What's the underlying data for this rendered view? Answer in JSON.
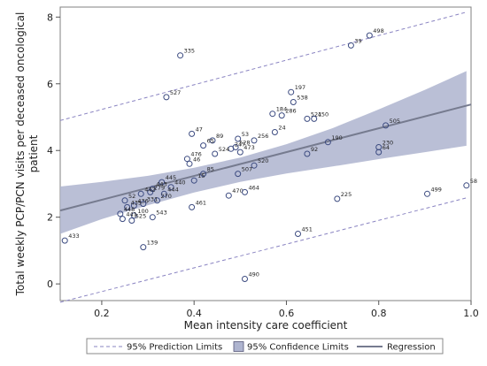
{
  "chart_data": {
    "type": "scatter",
    "title": "",
    "xlabel": "Mean intensity care coefficient",
    "ylabel_lines": [
      "Total weekly PCP/PCN visits per deceased oncological",
      "patient"
    ],
    "xlim": [
      0.11,
      1.0
    ],
    "ylim": [
      -0.5,
      8.3
    ],
    "x_ticks": [
      0.2,
      0.4,
      0.6,
      0.8,
      1.0
    ],
    "x_tick_labels": [
      "0.2",
      "0.4",
      "0.6",
      "0.8",
      "1.0"
    ],
    "y_ticks": [
      0,
      2,
      4,
      6,
      8
    ],
    "y_tick_labels": [
      "0",
      "2",
      "4",
      "6",
      "8"
    ],
    "grid": false,
    "legend_placement": "bottom",
    "legend": {
      "prediction": "95% Prediction Limits",
      "confidence": "95% Confidence Limits",
      "regression": "Regression"
    },
    "colors": {
      "points": "#3c4b80",
      "confidence_band": "#aeb4cf",
      "regression_line": "#767b8f",
      "prediction_limits": "#8a84c2"
    },
    "regression_line": {
      "x": [
        0.11,
        1.0
      ],
      "y": [
        2.2,
        5.38
      ]
    },
    "confidence_upper": {
      "x": [
        0.11,
        0.2,
        0.3,
        0.4,
        0.5,
        0.6,
        0.7,
        0.8,
        0.9,
        0.99
      ],
      "y": [
        2.92,
        3.06,
        3.24,
        3.48,
        3.79,
        4.19,
        4.67,
        5.23,
        5.82,
        6.38
      ]
    },
    "confidence_lower": {
      "x": [
        0.11,
        0.2,
        0.3,
        0.4,
        0.5,
        0.6,
        0.7,
        0.8,
        0.9,
        0.99
      ],
      "y": [
        1.5,
        1.94,
        2.36,
        2.74,
        3.06,
        3.31,
        3.52,
        3.74,
        3.95,
        4.14
      ]
    },
    "prediction_upper": {
      "x": [
        0.11,
        0.99
      ],
      "y": [
        4.9,
        8.15
      ]
    },
    "prediction_lower": {
      "x": [
        0.11,
        0.99
      ],
      "y": [
        -0.55,
        2.58
      ]
    },
    "points": [
      {
        "label": "498",
        "x": 0.78,
        "y": 7.45
      },
      {
        "label": "39",
        "x": 0.74,
        "y": 7.15
      },
      {
        "label": "335",
        "x": 0.37,
        "y": 6.85
      },
      {
        "label": "527",
        "x": 0.34,
        "y": 5.6
      },
      {
        "label": "197",
        "x": 0.61,
        "y": 5.75
      },
      {
        "label": "538",
        "x": 0.615,
        "y": 5.45
      },
      {
        "label": "184",
        "x": 0.57,
        "y": 5.1
      },
      {
        "label": "286",
        "x": 0.59,
        "y": 5.05
      },
      {
        "label": "521",
        "x": 0.645,
        "y": 4.95
      },
      {
        "label": "450",
        "x": 0.66,
        "y": 4.95
      },
      {
        "label": "505",
        "x": 0.815,
        "y": 4.75
      },
      {
        "label": "47",
        "x": 0.395,
        "y": 4.5
      },
      {
        "label": "89",
        "x": 0.44,
        "y": 4.3
      },
      {
        "label": "53",
        "x": 0.495,
        "y": 4.35
      },
      {
        "label": "24",
        "x": 0.575,
        "y": 4.55
      },
      {
        "label": "256",
        "x": 0.53,
        "y": 4.3
      },
      {
        "label": "190",
        "x": 0.69,
        "y": 4.25
      },
      {
        "label": "230",
        "x": 0.8,
        "y": 4.1
      },
      {
        "label": "65",
        "x": 0.42,
        "y": 4.15
      },
      {
        "label": "528",
        "x": 0.49,
        "y": 4.1
      },
      {
        "label": "247",
        "x": 0.48,
        "y": 4.05
      },
      {
        "label": "524",
        "x": 0.445,
        "y": 3.9
      },
      {
        "label": "473",
        "x": 0.5,
        "y": 3.95
      },
      {
        "label": "92",
        "x": 0.645,
        "y": 3.9
      },
      {
        "label": "64",
        "x": 0.8,
        "y": 3.95
      },
      {
        "label": "476",
        "x": 0.385,
        "y": 3.75
      },
      {
        "label": "46",
        "x": 0.39,
        "y": 3.6
      },
      {
        "label": "520",
        "x": 0.53,
        "y": 3.55
      },
      {
        "label": "85",
        "x": 0.42,
        "y": 3.3
      },
      {
        "label": "507",
        "x": 0.495,
        "y": 3.3
      },
      {
        "label": "15",
        "x": 0.4,
        "y": 3.1
      },
      {
        "label": "445",
        "x": 0.33,
        "y": 3.05
      },
      {
        "label": "443",
        "x": 0.31,
        "y": 2.85
      },
      {
        "label": "440",
        "x": 0.35,
        "y": 2.9
      },
      {
        "label": "279",
        "x": 0.305,
        "y": 2.75
      },
      {
        "label": "444",
        "x": 0.335,
        "y": 2.7
      },
      {
        "label": "442",
        "x": 0.285,
        "y": 2.7
      },
      {
        "label": "270",
        "x": 0.32,
        "y": 2.5
      },
      {
        "label": "52",
        "x": 0.25,
        "y": 2.5
      },
      {
        "label": "436",
        "x": 0.27,
        "y": 2.35
      },
      {
        "label": "331",
        "x": 0.29,
        "y": 2.4
      },
      {
        "label": "435",
        "x": 0.255,
        "y": 2.3
      },
      {
        "label": "448",
        "x": 0.24,
        "y": 2.1
      },
      {
        "label": "100",
        "x": 0.27,
        "y": 2.05
      },
      {
        "label": "543",
        "x": 0.31,
        "y": 2.0
      },
      {
        "label": "441",
        "x": 0.245,
        "y": 1.95
      },
      {
        "label": "525",
        "x": 0.265,
        "y": 1.9
      },
      {
        "label": "461",
        "x": 0.395,
        "y": 2.3
      },
      {
        "label": "470",
        "x": 0.475,
        "y": 2.65
      },
      {
        "label": "464",
        "x": 0.51,
        "y": 2.75
      },
      {
        "label": "225",
        "x": 0.71,
        "y": 2.55
      },
      {
        "label": "433",
        "x": 0.12,
        "y": 1.3
      },
      {
        "label": "139",
        "x": 0.29,
        "y": 1.1
      },
      {
        "label": "451",
        "x": 0.625,
        "y": 1.5
      },
      {
        "label": "490",
        "x": 0.51,
        "y": 0.15
      },
      {
        "label": "499",
        "x": 0.905,
        "y": 2.7
      },
      {
        "label": "58",
        "x": 0.99,
        "y": 2.95
      }
    ]
  }
}
